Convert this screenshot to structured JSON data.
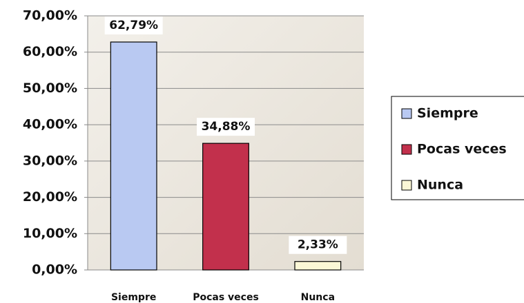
{
  "chart_data": {
    "type": "bar",
    "categories": [
      "Siempre",
      "Pocas veces",
      "Nunca"
    ],
    "values": [
      62.79,
      34.88,
      2.33
    ],
    "value_labels": [
      "62,79%",
      "34,88%",
      "2,33%"
    ],
    "colors": [
      "#b9c9f2",
      "#c2304c",
      "#fbf7d6"
    ],
    "ylim": [
      0,
      70
    ],
    "yticks": [
      {
        "value": 0,
        "label": "0,00%"
      },
      {
        "value": 10,
        "label": "10,00%"
      },
      {
        "value": 20,
        "label": "20,00%"
      },
      {
        "value": 30,
        "label": "30,00%"
      },
      {
        "value": 40,
        "label": "40,00%"
      },
      {
        "value": 50,
        "label": "50,00%"
      },
      {
        "value": 60,
        "label": "60,00%"
      },
      {
        "value": 70,
        "label": "70,00%"
      }
    ],
    "grid": true,
    "legend": "right"
  }
}
